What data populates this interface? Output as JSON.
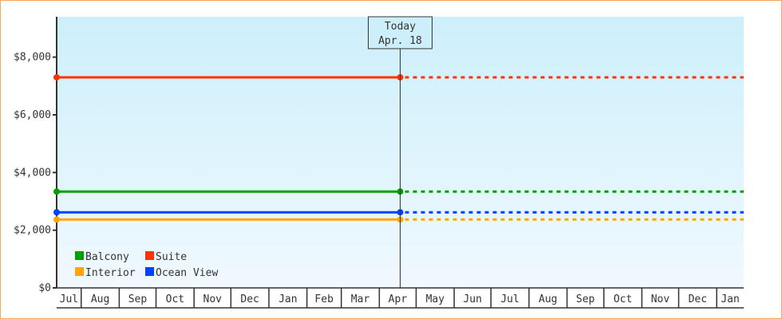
{
  "chart_data": {
    "type": "line",
    "title": "",
    "xlabel": "",
    "ylabel": "",
    "ylim": [
      0,
      9400
    ],
    "y_ticks": [
      0,
      2000,
      4000,
      6000,
      8000
    ],
    "y_tick_labels": [
      "$0",
      "$2,000",
      "$4,000",
      "$6,000",
      "$8,000"
    ],
    "x_tick_labels": [
      "Jul",
      "Aug",
      "Sep",
      "Oct",
      "Nov",
      "Dec",
      "Jan",
      "Feb",
      "Mar",
      "Apr",
      "May",
      "Jun",
      "Jul",
      "Aug",
      "Sep",
      "Oct",
      "Nov",
      "Dec",
      "Jan"
    ],
    "x_range": [
      "Jul 12",
      "Jan 23"
    ],
    "grid": false,
    "background": [
      "#cdeffb",
      "#f0f9fe"
    ],
    "today_marker": {
      "line1": "Today",
      "line2": "Apr. 18",
      "date": "Apr 18"
    },
    "legend_placement": "bottom-left",
    "series": [
      {
        "name": "Balcony",
        "color": "#00a000",
        "value": 3340,
        "actual_to": "Apr 18",
        "projected_to": "Jan 23"
      },
      {
        "name": "Suite",
        "color": "#ff3300",
        "value": 7300,
        "actual_to": "Apr 18",
        "projected_to": "Jan 23"
      },
      {
        "name": "Interior",
        "color": "#ffa500",
        "value": 2370,
        "actual_to": "Apr 18",
        "projected_to": "Jan 23"
      },
      {
        "name": "Ocean View",
        "color": "#0040ff",
        "value": 2620,
        "actual_to": "Apr 18",
        "projected_to": "Jan 23"
      }
    ]
  }
}
